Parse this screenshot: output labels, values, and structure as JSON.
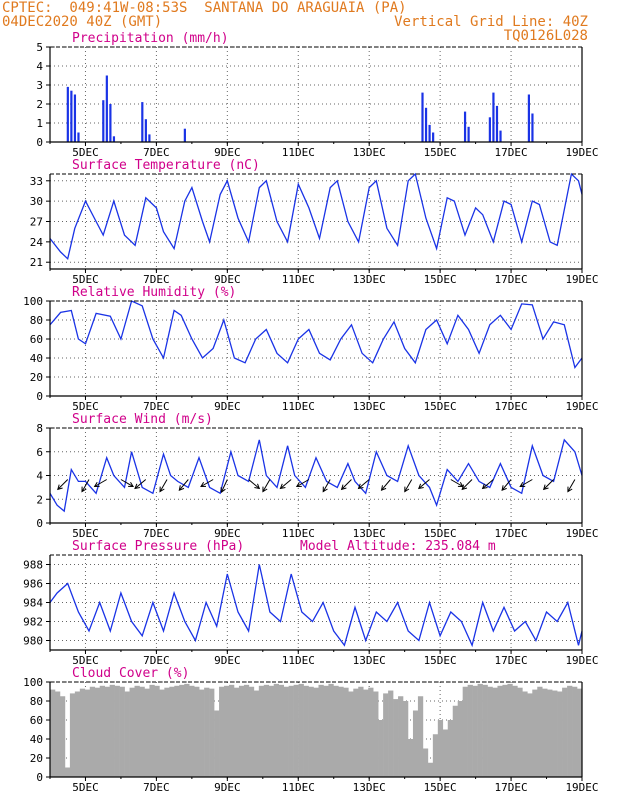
{
  "header": {
    "left1": "CPTEC:  049:41W-08:53S  SANTANA DO ARAGUAIA (PA)",
    "left2": "04DEC2020 40Z (GMT)",
    "right1": "Vertical Grid Line: 40Z",
    "right2": "TQ0126L028"
  },
  "colors": {
    "header": "#e07a1f",
    "title": "#d0008a",
    "series": "#1a33e6",
    "cloud": "#aaaaaa"
  },
  "chart_data": [
    {
      "type": "bar",
      "title": "Precipitation (mm/h)",
      "x_ticks": [
        "5DEC",
        "7DEC",
        "9DEC",
        "11DEC",
        "13DEC",
        "15DEC",
        "17DEC",
        "19DEC"
      ],
      "ylim": [
        0,
        5
      ],
      "y_ticks": [
        0,
        1,
        2,
        3,
        4,
        5
      ],
      "bars": [
        [
          4.5,
          2.9
        ],
        [
          4.6,
          2.7
        ],
        [
          4.7,
          2.5
        ],
        [
          4.8,
          0.5
        ],
        [
          5.5,
          2.2
        ],
        [
          5.6,
          3.5
        ],
        [
          5.7,
          2.0
        ],
        [
          5.8,
          0.3
        ],
        [
          6.6,
          2.1
        ],
        [
          6.7,
          1.2
        ],
        [
          6.8,
          0.4
        ],
        [
          7.8,
          0.7
        ],
        [
          14.5,
          2.6
        ],
        [
          14.6,
          1.8
        ],
        [
          14.7,
          0.9
        ],
        [
          14.8,
          0.5
        ],
        [
          15.7,
          1.6
        ],
        [
          15.8,
          0.8
        ],
        [
          16.4,
          1.3
        ],
        [
          16.5,
          2.6
        ],
        [
          16.6,
          1.9
        ],
        [
          16.7,
          0.6
        ],
        [
          17.5,
          2.5
        ],
        [
          17.6,
          1.5
        ]
      ]
    },
    {
      "type": "line",
      "title": "Surface Temperature (nC)",
      "x_ticks": [
        "5DEC",
        "7DEC",
        "9DEC",
        "11DEC",
        "13DEC",
        "15DEC",
        "17DEC",
        "19DEC"
      ],
      "ylim": [
        20,
        34
      ],
      "y_ticks": [
        21,
        24,
        27,
        30,
        33
      ],
      "points": [
        [
          4,
          24.5
        ],
        [
          4.3,
          22.5
        ],
        [
          4.5,
          21.5
        ],
        [
          4.7,
          26
        ],
        [
          5,
          30
        ],
        [
          5.3,
          27
        ],
        [
          5.5,
          25
        ],
        [
          5.8,
          30
        ],
        [
          6.1,
          25
        ],
        [
          6.4,
          23.5
        ],
        [
          6.7,
          30.5
        ],
        [
          7,
          29
        ],
        [
          7.2,
          25.5
        ],
        [
          7.5,
          23
        ],
        [
          7.8,
          30
        ],
        [
          8,
          32
        ],
        [
          8.3,
          27
        ],
        [
          8.5,
          24
        ],
        [
          8.8,
          31
        ],
        [
          9,
          33
        ],
        [
          9.3,
          27.5
        ],
        [
          9.6,
          24
        ],
        [
          9.9,
          32
        ],
        [
          10.1,
          33
        ],
        [
          10.4,
          27
        ],
        [
          10.7,
          24
        ],
        [
          11,
          32.5
        ],
        [
          11.3,
          29
        ],
        [
          11.6,
          24.5
        ],
        [
          11.9,
          32
        ],
        [
          12.1,
          33
        ],
        [
          12.4,
          27
        ],
        [
          12.7,
          24
        ],
        [
          13,
          32
        ],
        [
          13.2,
          33
        ],
        [
          13.5,
          26
        ],
        [
          13.8,
          23.5
        ],
        [
          14.1,
          33
        ],
        [
          14.3,
          34
        ],
        [
          14.6,
          27.5
        ],
        [
          14.9,
          23
        ],
        [
          15.2,
          30.5
        ],
        [
          15.4,
          30
        ],
        [
          15.7,
          25
        ],
        [
          16,
          29
        ],
        [
          16.2,
          28
        ],
        [
          16.5,
          24
        ],
        [
          16.8,
          30
        ],
        [
          17,
          29.5
        ],
        [
          17.3,
          24
        ],
        [
          17.6,
          30
        ],
        [
          17.8,
          29.5
        ],
        [
          18.1,
          24
        ],
        [
          18.3,
          23.5
        ],
        [
          18.7,
          34
        ],
        [
          18.9,
          33
        ],
        [
          19,
          31
        ]
      ]
    },
    {
      "type": "line",
      "title": "Relative Humidity (%)",
      "x_ticks": [
        "5DEC",
        "7DEC",
        "9DEC",
        "11DEC",
        "13DEC",
        "15DEC",
        "17DEC",
        "19DEC"
      ],
      "ylim": [
        0,
        100
      ],
      "y_ticks": [
        0,
        20,
        40,
        60,
        80,
        100
      ],
      "points": [
        [
          4,
          75
        ],
        [
          4.3,
          88
        ],
        [
          4.6,
          90
        ],
        [
          4.8,
          60
        ],
        [
          5,
          55
        ],
        [
          5.3,
          87
        ],
        [
          5.7,
          84
        ],
        [
          6,
          60
        ],
        [
          6.3,
          100
        ],
        [
          6.6,
          95
        ],
        [
          6.9,
          60
        ],
        [
          7.2,
          40
        ],
        [
          7.5,
          90
        ],
        [
          7.7,
          85
        ],
        [
          8,
          60
        ],
        [
          8.3,
          40
        ],
        [
          8.6,
          50
        ],
        [
          8.9,
          80
        ],
        [
          9.2,
          40
        ],
        [
          9.5,
          35
        ],
        [
          9.8,
          60
        ],
        [
          10.1,
          70
        ],
        [
          10.4,
          45
        ],
        [
          10.7,
          35
        ],
        [
          11,
          60
        ],
        [
          11.3,
          70
        ],
        [
          11.6,
          45
        ],
        [
          11.9,
          38
        ],
        [
          12.2,
          60
        ],
        [
          12.5,
          75
        ],
        [
          12.8,
          45
        ],
        [
          13.1,
          35
        ],
        [
          13.4,
          60
        ],
        [
          13.7,
          78
        ],
        [
          14,
          50
        ],
        [
          14.3,
          35
        ],
        [
          14.6,
          70
        ],
        [
          14.9,
          80
        ],
        [
          15.2,
          55
        ],
        [
          15.5,
          85
        ],
        [
          15.8,
          70
        ],
        [
          16.1,
          45
        ],
        [
          16.4,
          75
        ],
        [
          16.7,
          85
        ],
        [
          17,
          70
        ],
        [
          17.3,
          97
        ],
        [
          17.6,
          96
        ],
        [
          17.9,
          60
        ],
        [
          18.2,
          78
        ],
        [
          18.5,
          75
        ],
        [
          18.8,
          30
        ],
        [
          19,
          40
        ]
      ]
    },
    {
      "type": "line",
      "title": "Surface Wind (m/s)",
      "x_ticks": [
        "5DEC",
        "7DEC",
        "9DEC",
        "11DEC",
        "13DEC",
        "15DEC",
        "17DEC",
        "19DEC"
      ],
      "ylim": [
        0,
        8
      ],
      "y_ticks": [
        0,
        2,
        4,
        6,
        8
      ],
      "points": [
        [
          4,
          2.5
        ],
        [
          4.2,
          1.5
        ],
        [
          4.4,
          1
        ],
        [
          4.6,
          4.5
        ],
        [
          4.8,
          3.5
        ],
        [
          5,
          3.5
        ],
        [
          5.3,
          2.5
        ],
        [
          5.6,
          5.5
        ],
        [
          5.8,
          4
        ],
        [
          6.1,
          3
        ],
        [
          6.3,
          6
        ],
        [
          6.6,
          3
        ],
        [
          6.9,
          2.5
        ],
        [
          7.2,
          5.8
        ],
        [
          7.4,
          4
        ],
        [
          7.6,
          3.5
        ],
        [
          7.9,
          3
        ],
        [
          8.2,
          5.5
        ],
        [
          8.5,
          3
        ],
        [
          8.8,
          2.5
        ],
        [
          9.1,
          6
        ],
        [
          9.3,
          4
        ],
        [
          9.6,
          3.5
        ],
        [
          9.9,
          7
        ],
        [
          10.1,
          4
        ],
        [
          10.4,
          3
        ],
        [
          10.7,
          6.5
        ],
        [
          10.9,
          4
        ],
        [
          11.2,
          3
        ],
        [
          11.5,
          5.5
        ],
        [
          11.8,
          3.5
        ],
        [
          12.1,
          3
        ],
        [
          12.4,
          5
        ],
        [
          12.6,
          3.5
        ],
        [
          12.9,
          2.5
        ],
        [
          13.2,
          6
        ],
        [
          13.5,
          4
        ],
        [
          13.8,
          3.5
        ],
        [
          14.1,
          6.5
        ],
        [
          14.4,
          4
        ],
        [
          14.7,
          3
        ],
        [
          14.9,
          1.5
        ],
        [
          15.2,
          4.5
        ],
        [
          15.5,
          3.5
        ],
        [
          15.8,
          5
        ],
        [
          16.1,
          3.5
        ],
        [
          16.4,
          3
        ],
        [
          16.7,
          5
        ],
        [
          17,
          3
        ],
        [
          17.3,
          2.5
        ],
        [
          17.6,
          6.5
        ],
        [
          17.9,
          4
        ],
        [
          18.2,
          3.5
        ],
        [
          18.5,
          7
        ],
        [
          18.8,
          6
        ],
        [
          19,
          4
        ]
      ],
      "arrows": [
        [
          4.5,
          -20,
          -135
        ],
        [
          5.1,
          -25,
          -120
        ],
        [
          5.6,
          -20,
          -150
        ],
        [
          6.0,
          30,
          -30
        ],
        [
          6.7,
          -15,
          -140
        ],
        [
          7.3,
          -30,
          -120
        ],
        [
          7.9,
          20,
          -130
        ],
        [
          8.6,
          -10,
          -150
        ],
        [
          9.0,
          -25,
          -115
        ],
        [
          9.6,
          25,
          -40
        ],
        [
          10.2,
          -20,
          -120
        ],
        [
          10.8,
          20,
          -140
        ],
        [
          11.3,
          -15,
          -150
        ],
        [
          11.9,
          -25,
          -120
        ],
        [
          12.5,
          20,
          -135
        ],
        [
          13.0,
          -20,
          -140
        ],
        [
          13.6,
          -30,
          -130
        ],
        [
          14.2,
          15,
          -120
        ],
        [
          14.7,
          -25,
          -140
        ],
        [
          15.3,
          25,
          -30
        ],
        [
          15.9,
          -20,
          -135
        ],
        [
          16.5,
          -30,
          -140
        ],
        [
          17.0,
          20,
          -130
        ],
        [
          17.6,
          -25,
          -150
        ],
        [
          18.2,
          -20,
          -135
        ],
        [
          18.8,
          -25,
          -120
        ]
      ]
    },
    {
      "type": "line",
      "title": "Surface Pressure (hPa)",
      "annotation": "Model Altitude: 235.084 m",
      "x_ticks": [
        "5DEC",
        "7DEC",
        "9DEC",
        "11DEC",
        "13DEC",
        "15DEC",
        "17DEC",
        "19DEC"
      ],
      "ylim": [
        979,
        989
      ],
      "y_ticks": [
        980,
        982,
        984,
        986,
        988
      ],
      "points": [
        [
          4,
          984
        ],
        [
          4.2,
          985
        ],
        [
          4.5,
          986
        ],
        [
          4.8,
          983
        ],
        [
          5.1,
          981
        ],
        [
          5.4,
          984
        ],
        [
          5.7,
          981
        ],
        [
          6,
          985
        ],
        [
          6.3,
          982
        ],
        [
          6.6,
          980.5
        ],
        [
          6.9,
          984
        ],
        [
          7.2,
          981
        ],
        [
          7.5,
          985
        ],
        [
          7.8,
          982
        ],
        [
          8.1,
          980
        ],
        [
          8.4,
          984
        ],
        [
          8.7,
          981.5
        ],
        [
          9,
          987
        ],
        [
          9.3,
          983
        ],
        [
          9.6,
          981
        ],
        [
          9.9,
          988
        ],
        [
          10.2,
          983
        ],
        [
          10.5,
          982
        ],
        [
          10.8,
          987
        ],
        [
          11.1,
          983
        ],
        [
          11.4,
          982
        ],
        [
          11.7,
          984
        ],
        [
          12,
          981
        ],
        [
          12.3,
          979.5
        ],
        [
          12.6,
          983.5
        ],
        [
          12.9,
          980
        ],
        [
          13.2,
          983
        ],
        [
          13.5,
          982
        ],
        [
          13.8,
          984
        ],
        [
          14.1,
          981
        ],
        [
          14.4,
          980
        ],
        [
          14.7,
          984
        ],
        [
          15,
          980.5
        ],
        [
          15.3,
          983
        ],
        [
          15.6,
          982
        ],
        [
          15.9,
          979.5
        ],
        [
          16.2,
          984
        ],
        [
          16.5,
          981
        ],
        [
          16.8,
          983.5
        ],
        [
          17.1,
          981
        ],
        [
          17.4,
          982
        ],
        [
          17.7,
          980
        ],
        [
          18.0,
          983
        ],
        [
          18.3,
          982
        ],
        [
          18.6,
          984
        ],
        [
          18.9,
          979.5
        ],
        [
          19,
          981
        ]
      ]
    },
    {
      "type": "bar",
      "title": "Cloud Cover (%)",
      "x_ticks": [
        "5DEC",
        "7DEC",
        "9DEC",
        "11DEC",
        "13DEC",
        "15DEC",
        "17DEC",
        "19DEC"
      ],
      "ylim": [
        0,
        100
      ],
      "y_ticks": [
        0,
        20,
        40,
        60,
        80,
        100
      ],
      "values": [
        92,
        90,
        85,
        10,
        88,
        90,
        93,
        92,
        95,
        94,
        96,
        95,
        97,
        96,
        95,
        90,
        94,
        96,
        95,
        93,
        97,
        96,
        92,
        94,
        95,
        96,
        97,
        98,
        96,
        95,
        92,
        94,
        93,
        70,
        95,
        96,
        97,
        94,
        96,
        97,
        95,
        91,
        96,
        97,
        96,
        98,
        97,
        95,
        96,
        97,
        98,
        96,
        95,
        94,
        97,
        96,
        98,
        96,
        95,
        94,
        90,
        93,
        95,
        92,
        94,
        90,
        60,
        88,
        91,
        82,
        85,
        80,
        40,
        70,
        85,
        30,
        15,
        45,
        60,
        50,
        60,
        75,
        80,
        95,
        97,
        96,
        98,
        97,
        95,
        94,
        96,
        97,
        98,
        96,
        94,
        90,
        88,
        92,
        95,
        93,
        92,
        91,
        90,
        94,
        96,
        95,
        93
      ]
    }
  ]
}
